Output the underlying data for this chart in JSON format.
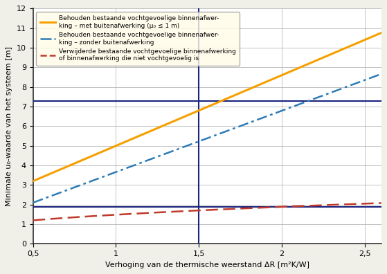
{
  "title": "",
  "xlabel": "Verhoging van de thermische weerstand ΔR [m²K/W]",
  "ylabel": "Minimale u₀-waarde van het systeem [m]",
  "xlim": [
    0.5,
    2.6
  ],
  "ylim": [
    0,
    12
  ],
  "xticks": [
    0.5,
    1.0,
    1.5,
    2.0,
    2.5
  ],
  "yticks": [
    0,
    1,
    2,
    3,
    4,
    5,
    6,
    7,
    8,
    9,
    10,
    11,
    12
  ],
  "xtick_labels": [
    "0,5",
    "1",
    "1,5",
    "2",
    "2,5"
  ],
  "vertical_line_x": 1.5,
  "horizontal_line_y1": 7.3,
  "horizontal_line_y2": 1.87,
  "line1_color": "#F5A000",
  "line2_color": "#2C7BB6",
  "line3_color": "#C0392B",
  "vline_color": "#1a237e",
  "hline_color": "#1a237e",
  "legend_label1": "Behouden bestaande vochtgevoelige binnenafwer-\nking – met buitenafwerking (μ₀ ≤ 1 m)",
  "legend_label2": "Behouden bestaande vochtgevoelige binnenafwer-\nking – zonder buitenafwerking",
  "legend_label3": "Verwijderde bestaande vochtgevoelige binnenafwerking\nof binnenafwerking die niet vochtgevoelig is",
  "line1_x0": 0.5,
  "line1_y0": 3.2,
  "line1_x1": 2.5,
  "line1_y1": 10.4,
  "line2_x0": 0.5,
  "line2_y0": 2.1,
  "line2_x1": 2.5,
  "line2_y1": 8.35,
  "line3_x0": 0.5,
  "line3_y0": 1.2,
  "line3_x1": 2.5,
  "line3_y1": 2.05,
  "bg_color": "#FFFFFF",
  "grid_color": "#AAAAAA",
  "fig_bg": "#F0F0E8"
}
